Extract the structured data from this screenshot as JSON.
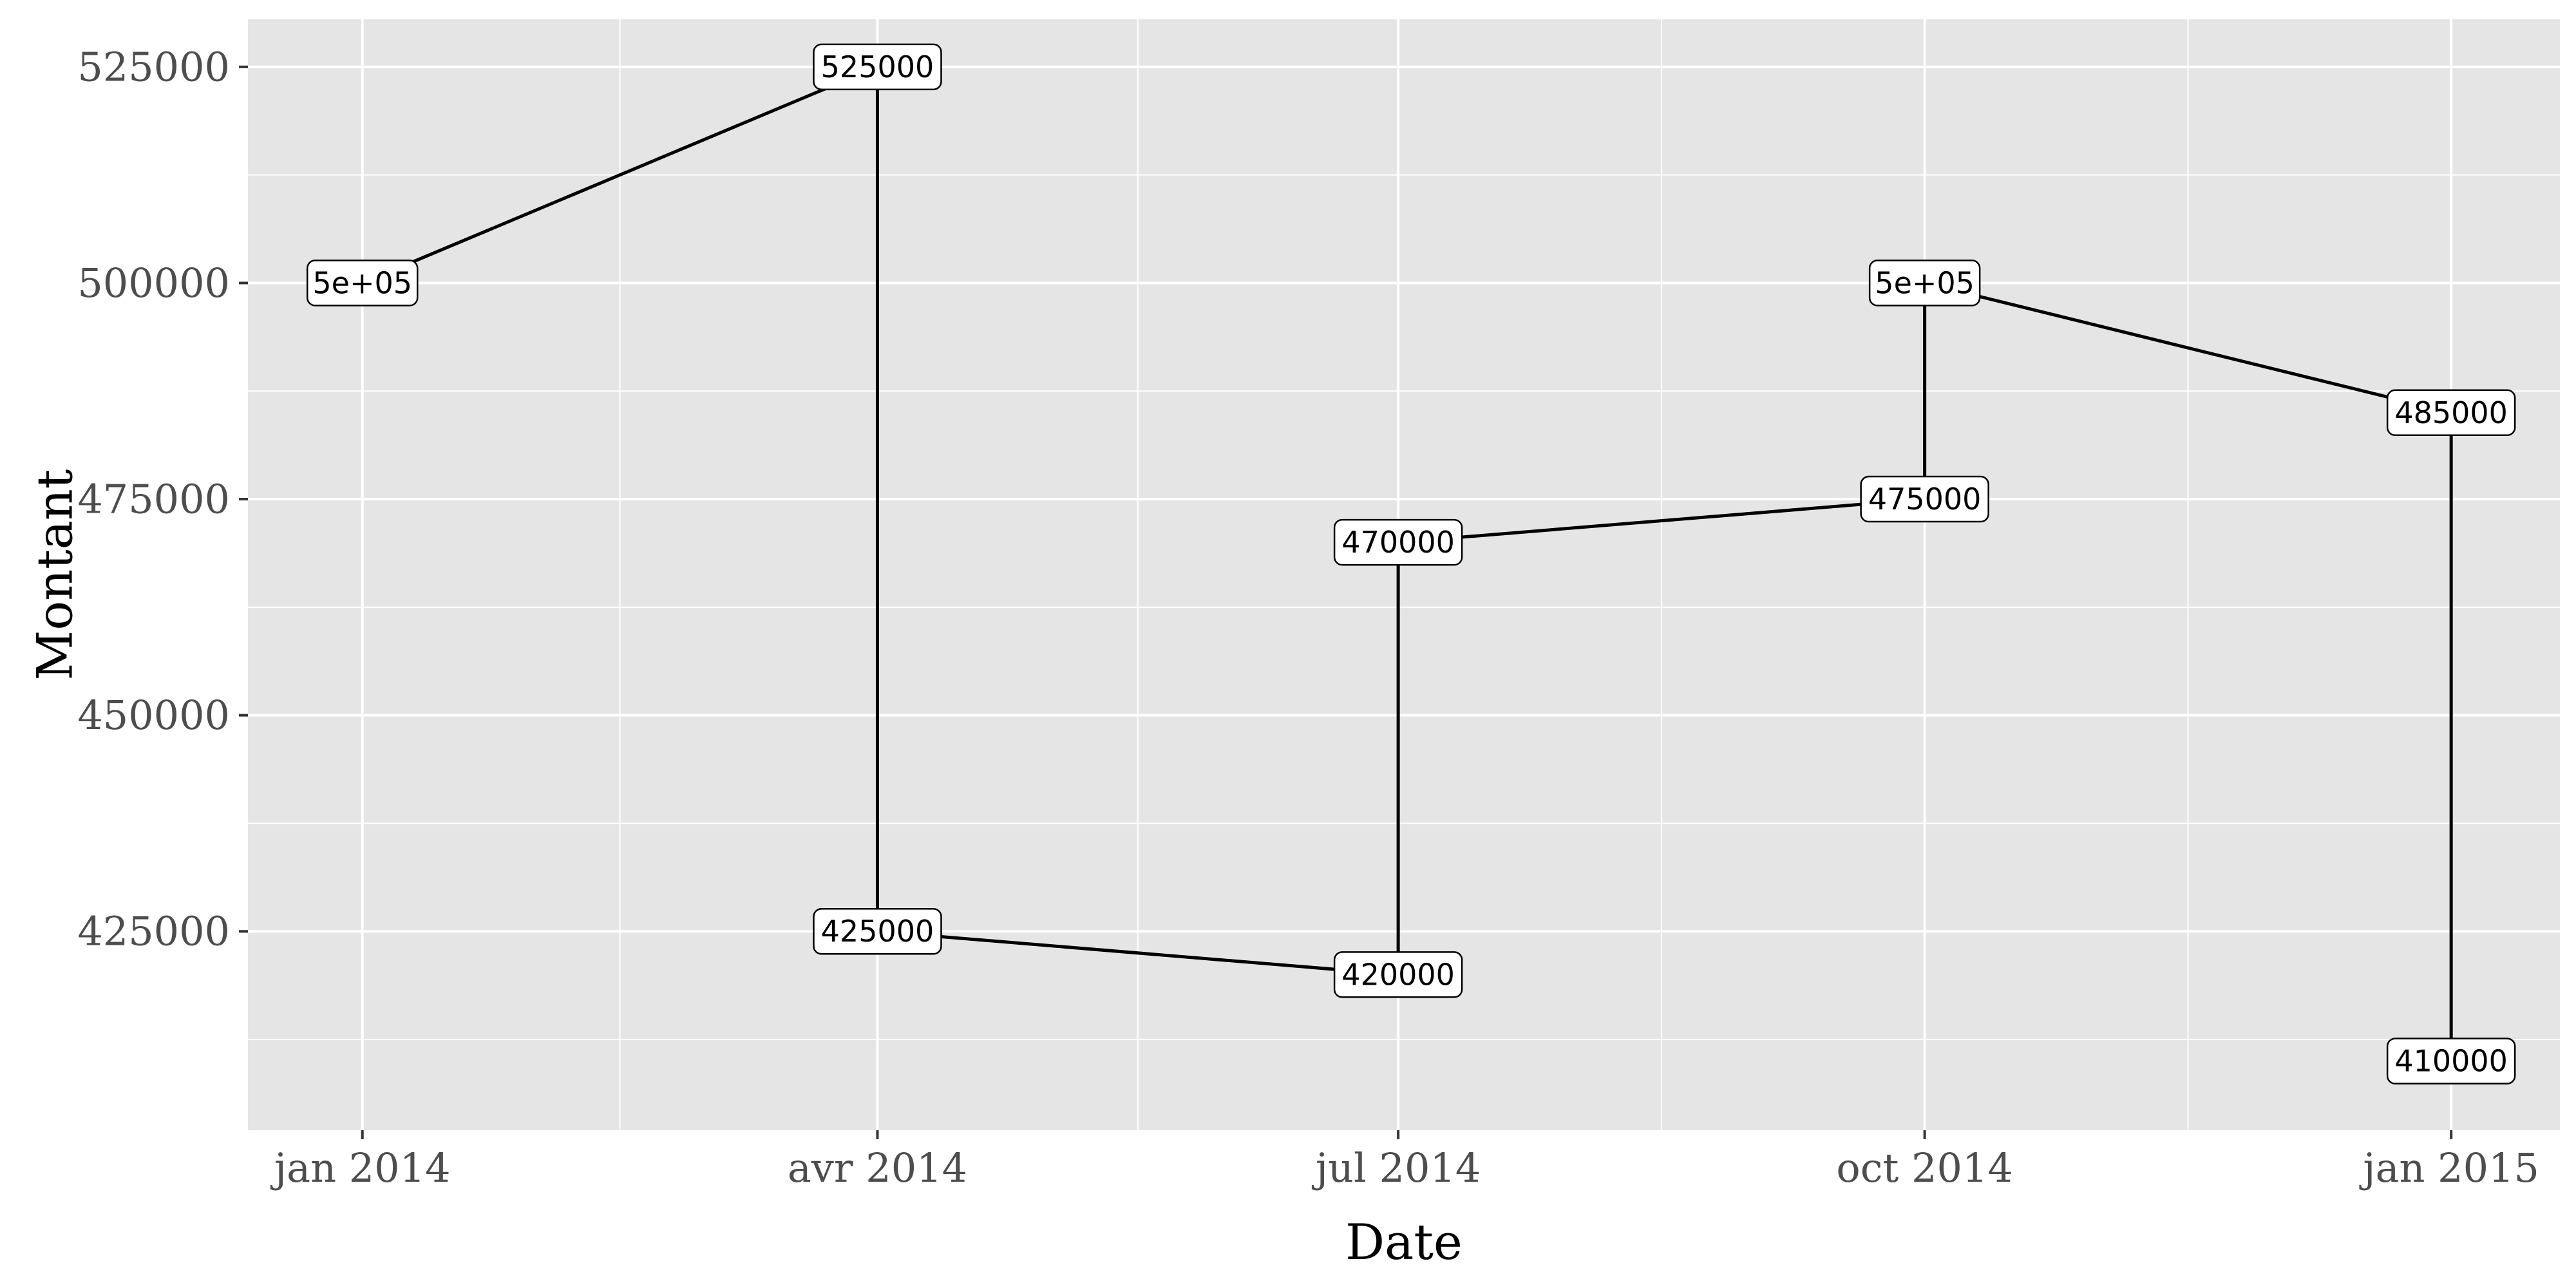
{
  "chart_data": {
    "type": "line",
    "title": "",
    "xlabel": "Date",
    "ylabel": "Montant",
    "x_ticks": [
      {
        "date": "2014-01-01",
        "label": "jan 2014"
      },
      {
        "date": "2014-04-01",
        "label": "avr 2014"
      },
      {
        "date": "2014-07-01",
        "label": "jul 2014"
      },
      {
        "date": "2014-10-01",
        "label": "oct 2014"
      },
      {
        "date": "2015-01-01",
        "label": "jan 2015"
      }
    ],
    "y_ticks": [
      {
        "value": 425000,
        "label": "425000"
      },
      {
        "value": 450000,
        "label": "450000"
      },
      {
        "value": 475000,
        "label": "475000"
      },
      {
        "value": 500000,
        "label": "500000"
      },
      {
        "value": 525000,
        "label": "525000"
      }
    ],
    "xlim": [
      "2013-12-12",
      "2015-01-20"
    ],
    "ylim": [
      402000,
      530500
    ],
    "grid": true,
    "series": [
      {
        "points": [
          {
            "x": "2014-01-01",
            "y": 500000,
            "label": "5e+05"
          },
          {
            "x": "2014-04-01",
            "y": 525000,
            "label": "525000"
          },
          {
            "x": "2014-04-01",
            "y": 425000,
            "label": "425000"
          },
          {
            "x": "2014-07-01",
            "y": 420000,
            "label": "420000"
          },
          {
            "x": "2014-07-01",
            "y": 470000,
            "label": "470000"
          },
          {
            "x": "2014-10-01",
            "y": 475000,
            "label": "475000"
          },
          {
            "x": "2014-10-01",
            "y": 500000,
            "label": "5e+05"
          },
          {
            "x": "2015-01-01",
            "y": 485000,
            "label": "485000"
          },
          {
            "x": "2015-01-01",
            "y": 410000,
            "label": "410000"
          }
        ]
      }
    ],
    "colors": {
      "panel_background": "#e5e5e5",
      "grid_major": "#ffffff",
      "grid_minor": "#f2f2f2",
      "line": "#000000",
      "tick_text": "#4d4d4d"
    }
  }
}
